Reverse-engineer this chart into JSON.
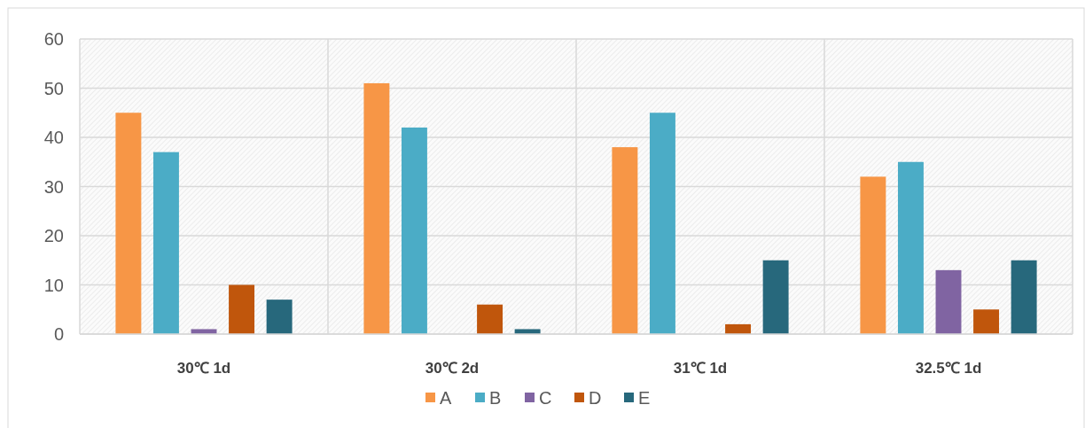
{
  "chart_data": {
    "type": "bar",
    "categories": [
      "30℃ 1d",
      "30℃ 2d",
      "31℃ 1d",
      "32.5℃ 1d"
    ],
    "series": [
      {
        "name": "A",
        "color": "#f79646",
        "values": [
          45,
          51,
          38,
          32
        ]
      },
      {
        "name": "B",
        "color": "#4bacc6",
        "values": [
          37,
          42,
          45,
          35
        ]
      },
      {
        "name": "C",
        "color": "#8064a2",
        "values": [
          1,
          0,
          0,
          13
        ]
      },
      {
        "name": "D",
        "color": "#c0560c",
        "values": [
          10,
          6,
          2,
          5
        ]
      },
      {
        "name": "E",
        "color": "#27687c",
        "values": [
          7,
          1,
          15,
          15
        ]
      }
    ],
    "ylim": [
      0,
      60
    ],
    "yticks": [
      0,
      10,
      20,
      30,
      40,
      50,
      60
    ],
    "grid": true,
    "legend": "bottom"
  }
}
